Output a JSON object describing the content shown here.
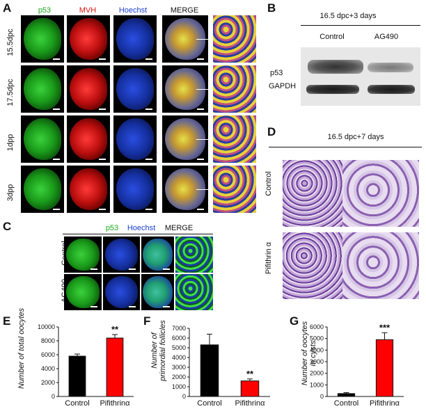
{
  "panel_letters": {
    "a": "A",
    "b": "B",
    "c": "C",
    "d": "D",
    "e": "E",
    "f": "F",
    "g": "G"
  },
  "panelA": {
    "channels": [
      "p53",
      "MVH",
      "Hoechst",
      "MERGE"
    ],
    "rows": [
      "15.5dpc",
      "17.5dpc",
      "1dpp",
      "3dpp"
    ],
    "colors": {
      "p53": "#1aa81a",
      "MVH": "#e01010",
      "Hoechst": "#1a3fd0",
      "MERGE": "#111111"
    }
  },
  "panelB": {
    "title": "16.5 dpc+3 days",
    "columns": [
      "Control",
      "AG490"
    ],
    "rows": [
      "p53",
      "GAPDH"
    ]
  },
  "panelC": {
    "channels": [
      "p53",
      "Hoechst",
      "MERGE"
    ],
    "rows": [
      "Control",
      "AG490"
    ],
    "colors": {
      "p53": "#1aa81a",
      "Hoechst": "#1a3fd0",
      "MERGE": "#111111"
    }
  },
  "panelD": {
    "title": "16.5 dpc+7 days",
    "rows": [
      "Control",
      "Pifithrin α"
    ]
  },
  "chart_data": [
    {
      "type": "bar",
      "ylabel": "Number of total oocytes",
      "categories": [
        "Control",
        "Pifithrinα"
      ],
      "values": [
        5800,
        8400
      ],
      "errors": [
        300,
        500
      ],
      "colors": [
        "#000000",
        "#ff0000"
      ],
      "ylim": [
        0,
        10000
      ],
      "yticks": [
        0,
        2000,
        4000,
        6000,
        8000,
        10000
      ],
      "significance": [
        "",
        "**"
      ]
    },
    {
      "type": "bar",
      "ylabel": "Number of primordial follicles",
      "categories": [
        "Control",
        "Pifithrinα"
      ],
      "values": [
        5300,
        1600
      ],
      "errors": [
        1100,
        200
      ],
      "colors": [
        "#000000",
        "#ff0000"
      ],
      "ylim": [
        0,
        7000
      ],
      "yticks": [
        0,
        1000,
        2000,
        3000,
        4000,
        5000,
        6000,
        7000
      ],
      "significance": [
        "",
        "**"
      ]
    },
    {
      "type": "bar",
      "ylabel": "Number of oocytes in cysts",
      "categories": [
        "Control",
        "Pifithrinα"
      ],
      "values": [
        250,
        4900
      ],
      "errors": [
        80,
        600
      ],
      "colors": [
        "#000000",
        "#ff0000"
      ],
      "ylim": [
        0,
        6000
      ],
      "yticks": [
        0,
        1000,
        2000,
        3000,
        4000,
        5000,
        6000
      ],
      "significance": [
        "",
        "***"
      ]
    }
  ]
}
